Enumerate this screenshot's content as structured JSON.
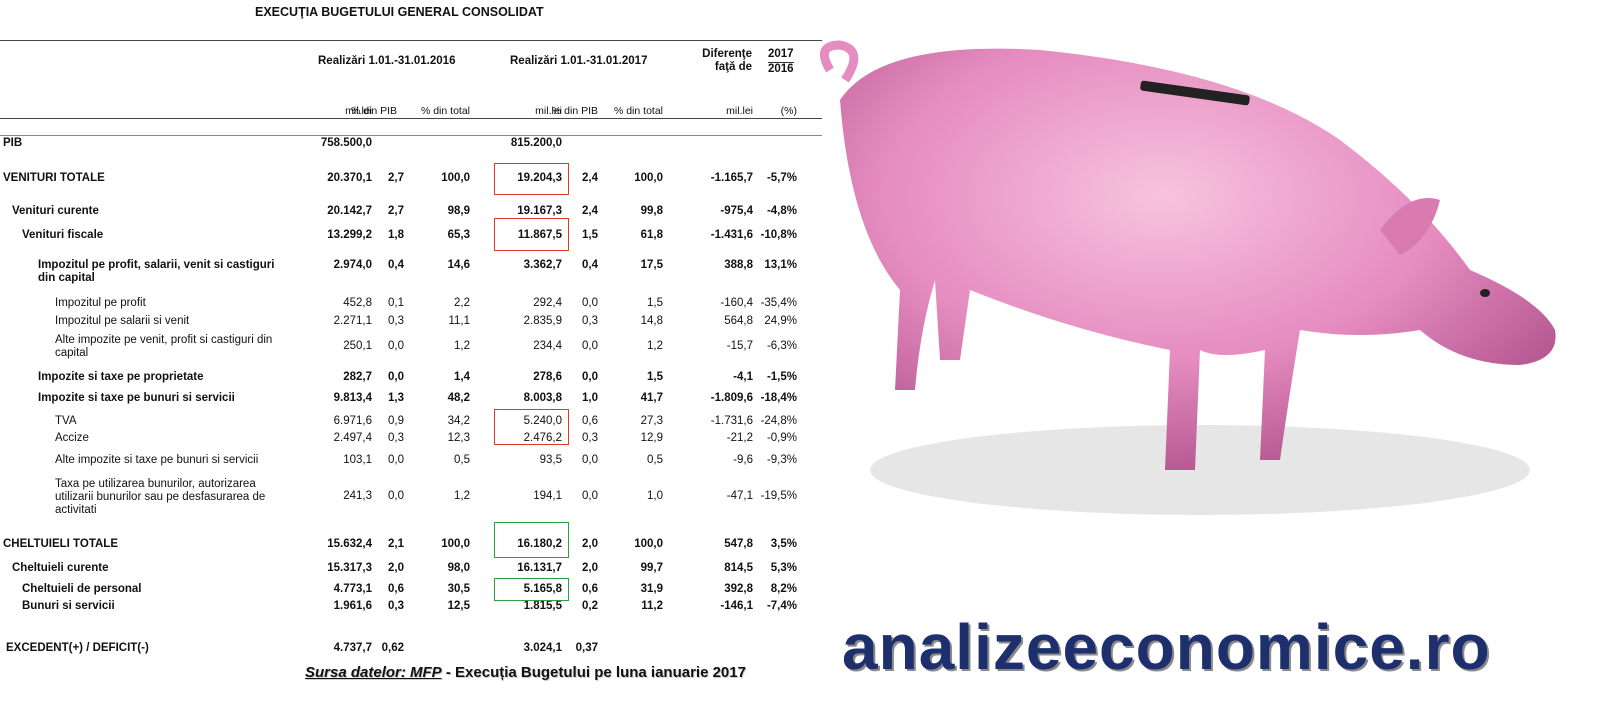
{
  "header": {
    "title": "EXECUŢIA BUGETULUI GENERAL CONSOLIDAT",
    "groups": [
      "Realizări 1.01.-31.01.2016",
      "Realizări 1.01.-31.01.2017",
      "Diferenţe faţă de",
      "2017",
      "2016"
    ],
    "columns": [
      "mil.lei",
      "% din PIB",
      "% din total",
      "mil.lei",
      "% din PIB",
      "% din total",
      "mil.lei",
      "(%)"
    ]
  },
  "table": {
    "rows": [
      {
        "label": "PIB",
        "cells": [
          "758.500,0",
          null,
          null,
          "815.200,0",
          null,
          null,
          null,
          null
        ]
      },
      {
        "label": "VENITURI TOTALE",
        "cells": [
          "20.370,1",
          "2,7",
          "100,0",
          "19.204,3",
          "2,4",
          "100,0",
          "-1.165,7",
          "-5,7%"
        ]
      },
      {
        "label": "Venituri curente",
        "cells": [
          "20.142,7",
          "2,7",
          "98,9",
          "19.167,3",
          "2,4",
          "99,8",
          "-975,4",
          "-4,8%"
        ]
      },
      {
        "label": "Venituri fiscale",
        "cells": [
          "13.299,2",
          "1,8",
          "65,3",
          "11.867,5",
          "1,5",
          "61,8",
          "-1.431,6",
          "-10,8%"
        ]
      },
      {
        "label": "Impozitul pe profit, salarii, venit si castiguri din capital",
        "cells": [
          "2.974,0",
          "0,4",
          "14,6",
          "3.362,7",
          "0,4",
          "17,5",
          "388,8",
          "13,1%"
        ]
      },
      {
        "label": "Impozitul pe profit",
        "cells": [
          "452,8",
          "0,1",
          "2,2",
          "292,4",
          "0,0",
          "1,5",
          "-160,4",
          "-35,4%"
        ]
      },
      {
        "label": "Impozitul pe salarii si venit",
        "cells": [
          "2.271,1",
          "0,3",
          "11,1",
          "2.835,9",
          "0,3",
          "14,8",
          "564,8",
          "24,9%"
        ]
      },
      {
        "label": "Alte impozite pe venit, profit si castiguri din capital",
        "cells": [
          "250,1",
          "0,0",
          "1,2",
          "234,4",
          "0,0",
          "1,2",
          "-15,7",
          "-6,3%"
        ]
      },
      {
        "label": "Impozite si taxe pe proprietate",
        "cells": [
          "282,7",
          "0,0",
          "1,4",
          "278,6",
          "0,0",
          "1,5",
          "-4,1",
          "-1,5%"
        ]
      },
      {
        "label": "Impozite si taxe pe bunuri si servicii",
        "cells": [
          "9.813,4",
          "1,3",
          "48,2",
          "8.003,8",
          "1,0",
          "41,7",
          "-1.809,6",
          "-18,4%"
        ]
      },
      {
        "label": "TVA",
        "cells": [
          "6.971,6",
          "0,9",
          "34,2",
          "5.240,0",
          "0,6",
          "27,3",
          "-1.731,6",
          "-24,8%"
        ]
      },
      {
        "label": "Accize",
        "cells": [
          "2.497,4",
          "0,3",
          "12,3",
          "2.476,2",
          "0,3",
          "12,9",
          "-21,2",
          "-0,9%"
        ]
      },
      {
        "label": "Alte impozite si taxe pe bunuri si servicii",
        "cells": [
          "103,1",
          "0,0",
          "0,5",
          "93,5",
          "0,0",
          "0,5",
          "-9,6",
          "-9,3%"
        ]
      },
      {
        "label": "Taxa pe utilizarea bunurilor, autorizarea utilizarii bunurilor sau pe  desfasurarea de activitati",
        "cells": [
          "241,3",
          "0,0",
          "1,2",
          "194,1",
          "0,0",
          "1,0",
          "-47,1",
          "-19,5%"
        ]
      },
      {
        "label": "CHELTUIELI TOTALE",
        "cells": [
          "15.632,4",
          "2,1",
          "100,0",
          "16.180,2",
          "2,0",
          "100,0",
          "547,8",
          "3,5%"
        ]
      },
      {
        "label": "Cheltuieli curente",
        "cells": [
          "15.317,3",
          "2,0",
          "98,0",
          "16.131,7",
          "2,0",
          "99,7",
          "814,5",
          "5,3%"
        ]
      },
      {
        "label": "Cheltuieli de personal",
        "cells": [
          "4.773,1",
          "0,6",
          "30,5",
          "5.165,8",
          "0,6",
          "31,9",
          "392,8",
          "8,2%"
        ]
      },
      {
        "label": "Bunuri si servicii",
        "cells": [
          "1.961,6",
          "0,3",
          "12,5",
          "1.815,5",
          "0,2",
          "11,2",
          "-146,1",
          "-7,4%"
        ]
      },
      {
        "label": "EXCEDENT(+) / DEFICIT(-)",
        "cells": [
          "4.737,7",
          "0,62",
          null,
          "3.024,1",
          "0,37",
          null,
          null,
          null
        ]
      }
    ]
  },
  "footer": {
    "source_label": "Sursa datelor: MFP",
    "source_text": " - Execuția Bugetului pe luna ianuarie 2017",
    "brand": "analizeeconomice.ro"
  }
}
